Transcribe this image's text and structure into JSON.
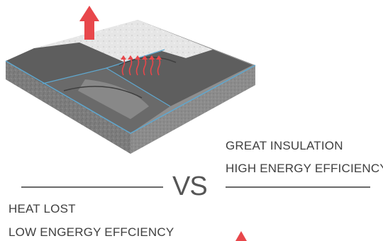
{
  "comparison": {
    "right_side": {
      "line1": "GREAT INSULATION",
      "line2": "HIGH ENERGY EFFICIENCY"
    },
    "separator": "VS",
    "left_side": {
      "line1": "HEAT LOST",
      "line2": "LOW ENGERGY EFFCIENCY"
    }
  },
  "colors": {
    "heat_arrow": "#e8474b",
    "concrete": "#8a8a8a",
    "insulation_surface": "#5b5b5b",
    "snow_layer": "#e4e4e4",
    "text": "#3f3f3f"
  }
}
